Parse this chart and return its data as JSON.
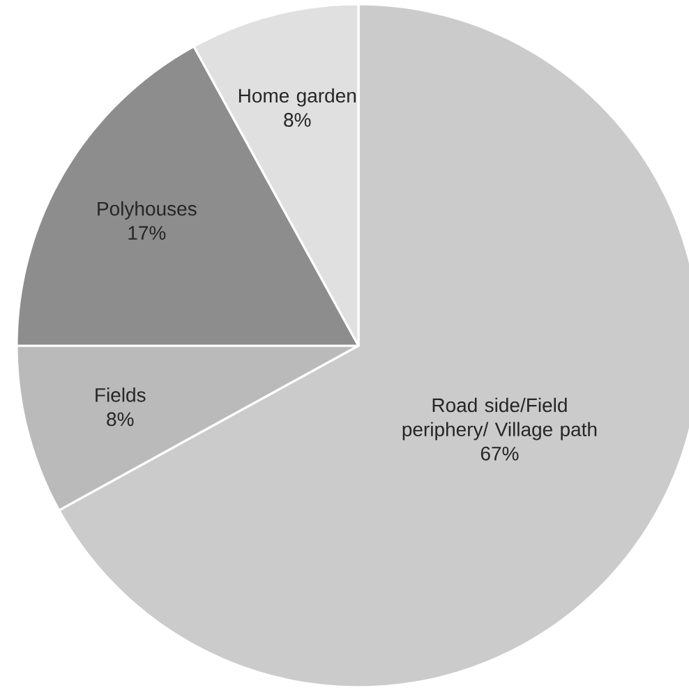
{
  "chart_data": {
    "type": "pie",
    "categories": [
      "Road side/Field periphery/ Village path",
      "Fields",
      "Polyhouses",
      "Home garden"
    ],
    "values": [
      67,
      8,
      17,
      8
    ],
    "value_labels": [
      "67%",
      "8%",
      "17%",
      "8%"
    ],
    "colors": [
      "#cbcbcb",
      "#bababa",
      "#8d8d8d",
      "#e0e0e0"
    ]
  }
}
